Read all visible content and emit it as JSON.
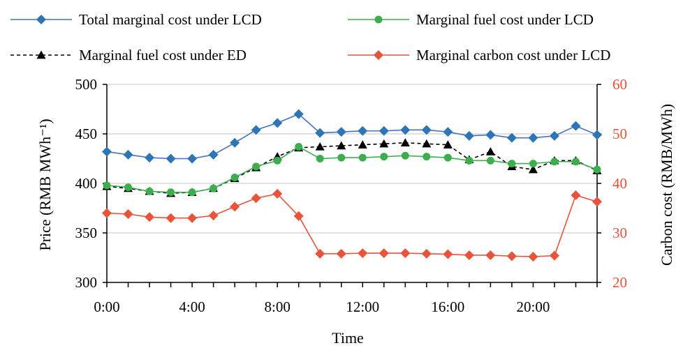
{
  "chart_data": {
    "type": "line",
    "title": "",
    "xlabel": "Time",
    "ylabel_left": "Price (RMB MWh⁻¹)",
    "ylabel_right": "Carbon cost (RMB/MWh)",
    "x": [
      0,
      1,
      2,
      3,
      4,
      5,
      6,
      7,
      8,
      9,
      10,
      11,
      12,
      13,
      14,
      15,
      16,
      17,
      18,
      19,
      20,
      21,
      22,
      23
    ],
    "x_tick_labels": [
      "0:00",
      "4:00",
      "8:00",
      "12:00",
      "16:00",
      "20:00"
    ],
    "x_tick_values": [
      0,
      4,
      8,
      12,
      16,
      20
    ],
    "xlim": [
      0,
      23
    ],
    "ylim_left": [
      300,
      500
    ],
    "y_ticks_left": [
      "300",
      "350",
      "400",
      "450",
      "500"
    ],
    "ylim_right": [
      20,
      60
    ],
    "y_ticks_right": [
      "20",
      "30",
      "40",
      "50",
      "60"
    ],
    "grid": "horizontal",
    "legend_position": "top",
    "series": [
      {
        "name": "Total marginal cost under LCD",
        "axis": "left",
        "color": "#4472C4",
        "marker": "diamond",
        "line_style": "solid",
        "marker_fill": "#2E75B6",
        "values": [
          432,
          429,
          426,
          425,
          425,
          429,
          441,
          454,
          461,
          470,
          451,
          452,
          453,
          453,
          454,
          454,
          452,
          448,
          449,
          446,
          446,
          448,
          458,
          449
        ]
      },
      {
        "name": "Marginal fuel cost under LCD",
        "axis": "left",
        "color": "#3DAE4E",
        "marker": "circle",
        "line_style": "solid",
        "marker_fill": "#3DAE4E",
        "values": [
          398,
          396,
          392,
          391,
          391,
          395,
          406,
          417,
          423,
          437,
          425,
          426,
          426,
          427,
          428,
          427,
          426,
          423,
          423,
          420,
          420,
          422,
          422,
          414
        ]
      },
      {
        "name": "Marginal fuel cost under ED",
        "axis": "left",
        "color": "#000000",
        "marker": "triangle",
        "line_style": "dashed",
        "marker_fill": "#000000",
        "values": [
          397,
          395,
          392,
          390,
          391,
          395,
          405,
          416,
          427,
          436,
          437,
          438,
          439,
          440,
          441,
          440,
          439,
          424,
          432,
          417,
          414,
          423,
          423,
          413
        ]
      },
      {
        "name": "Marginal carbon cost under LCD",
        "axis": "right",
        "color": "#E8533A",
        "marker": "diamond",
        "line_style": "solid",
        "marker_fill": "#E8533A",
        "values": [
          34.0,
          33.8,
          33.2,
          33.0,
          33.0,
          33.5,
          35.3,
          37.0,
          37.9,
          33.4,
          25.8,
          25.8,
          25.9,
          25.9,
          25.9,
          25.8,
          25.7,
          25.5,
          25.5,
          25.3,
          25.2,
          25.4,
          37.6,
          36.3
        ]
      }
    ],
    "legend": [
      {
        "series_index": 0,
        "label": "Total marginal cost under LCD"
      },
      {
        "series_index": 1,
        "label": "Marginal fuel cost under LCD"
      },
      {
        "series_index": 2,
        "label": "Marginal fuel cost under ED"
      },
      {
        "series_index": 3,
        "label": "Marginal carbon cost under LCD"
      }
    ],
    "right_axis_color": "#E8533A"
  }
}
